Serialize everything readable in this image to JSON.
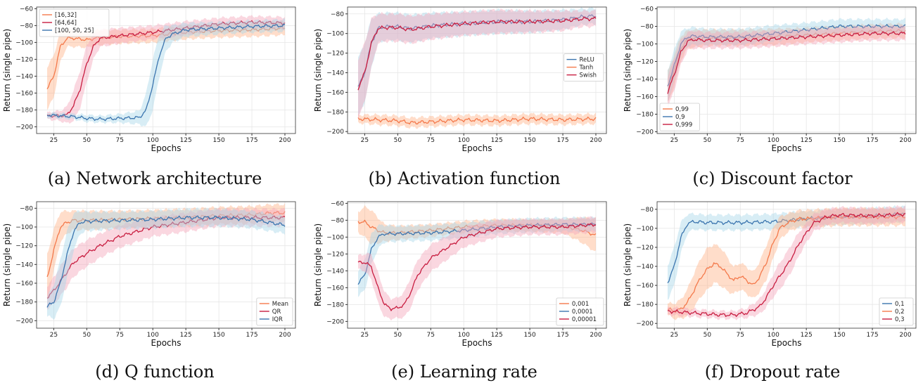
{
  "chart_data": [
    {
      "type": "line",
      "caption": "(a) Network architecture",
      "xlabel": "Epochs",
      "ylabel": "Return (single pipe)",
      "xlim": [
        12,
        208
      ],
      "ylim": [
        -208,
        -58
      ],
      "xticks": [
        25,
        50,
        75,
        100,
        125,
        150,
        175,
        200
      ],
      "yticks": [
        -200,
        -180,
        -160,
        -140,
        -120,
        -100,
        -80,
        -60
      ],
      "legend_position": "top-left",
      "grid": true,
      "series": [
        {
          "name": "[16,32]",
          "color": "#F4794B",
          "band_color": "#FFB48A",
          "x": [
            20,
            25,
            30,
            35,
            40,
            50,
            60,
            75,
            100,
            125,
            150,
            175,
            200
          ],
          "y": [
            -155,
            -140,
            -105,
            -95,
            -95,
            -97,
            -94,
            -93,
            -92,
            -88,
            -86,
            -85,
            -83
          ],
          "band": [
            25,
            25,
            18,
            10,
            10,
            9,
            9,
            8,
            8,
            8,
            8,
            8,
            8
          ]
        },
        {
          "name": "[64,64]",
          "color": "#C81D40",
          "band_color": "#F4A6BA",
          "x": [
            20,
            25,
            30,
            35,
            40,
            45,
            50,
            55,
            60,
            75,
            100,
            125,
            150,
            175,
            200
          ],
          "y": [
            -187,
            -187,
            -187,
            -186,
            -175,
            -155,
            -125,
            -105,
            -95,
            -92,
            -88,
            -83,
            -78,
            -76,
            -77
          ],
          "band": [
            4,
            5,
            6,
            10,
            18,
            22,
            22,
            15,
            10,
            9,
            8,
            8,
            7,
            7,
            7
          ]
        },
        {
          "name": "[100, 50, 25]",
          "color": "#3B75AF",
          "band_color": "#A9D8E8",
          "x": [
            20,
            30,
            40,
            50,
            60,
            75,
            90,
            95,
            100,
            105,
            110,
            115,
            125,
            150,
            175,
            200
          ],
          "y": [
            -186,
            -187,
            -188,
            -190,
            -191,
            -190,
            -189,
            -180,
            -150,
            -115,
            -95,
            -90,
            -85,
            -83,
            -81,
            -80
          ],
          "band": [
            3,
            3,
            3,
            4,
            4,
            5,
            8,
            20,
            30,
            25,
            15,
            10,
            8,
            7,
            7,
            7
          ]
        }
      ]
    },
    {
      "type": "line",
      "caption": "(b) Activation function",
      "xlabel": "Epochs",
      "ylabel": "Return (single pipe)",
      "xlim": [
        12,
        208
      ],
      "ylim": [
        -202,
        -73
      ],
      "xticks": [
        25,
        50,
        75,
        100,
        125,
        150,
        175,
        200
      ],
      "yticks": [
        -200,
        -180,
        -160,
        -140,
        -120,
        -100,
        -80
      ],
      "legend_position": "center-right",
      "grid": true,
      "series": [
        {
          "name": "ReLU",
          "color": "#3B75AF",
          "band_color": "#A9D8E8",
          "x": [
            20,
            25,
            30,
            35,
            40,
            50,
            60,
            75,
            100,
            125,
            150,
            175,
            190,
            200
          ],
          "y": [
            -155,
            -140,
            -110,
            -95,
            -93,
            -93,
            -95,
            -92,
            -90,
            -88,
            -88,
            -86,
            -83,
            -82
          ],
          "band": [
            30,
            30,
            25,
            15,
            14,
            14,
            14,
            13,
            12,
            12,
            11,
            10,
            8,
            8
          ]
        },
        {
          "name": "Tanh",
          "color": "#F4794B",
          "band_color": "#FFB48A",
          "x": [
            20,
            35,
            50,
            60,
            75,
            100,
            125,
            150,
            175,
            200
          ],
          "y": [
            -187,
            -188,
            -189,
            -191,
            -190,
            -188,
            -189,
            -187,
            -188,
            -187
          ],
          "band": [
            4,
            5,
            5,
            5,
            5,
            5,
            5,
            5,
            5,
            5
          ]
        },
        {
          "name": "Swish",
          "color": "#C81D40",
          "band_color": "#F4A6BA",
          "x": [
            20,
            25,
            30,
            35,
            40,
            50,
            60,
            75,
            100,
            125,
            150,
            175,
            190,
            200
          ],
          "y": [
            -156,
            -140,
            -110,
            -95,
            -94,
            -94,
            -96,
            -93,
            -90,
            -88,
            -88,
            -87,
            -85,
            -85
          ],
          "band": [
            30,
            30,
            25,
            15,
            14,
            14,
            14,
            13,
            12,
            12,
            11,
            10,
            8,
            8
          ]
        }
      ]
    },
    {
      "type": "line",
      "caption": "(c) Discount factor",
      "xlabel": "Epochs",
      "ylabel": "Return (single pipe)",
      "xlim": [
        12,
        208
      ],
      "ylim": [
        -202,
        -58
      ],
      "xticks": [
        25,
        50,
        75,
        100,
        125,
        150,
        175,
        200
      ],
      "yticks": [
        -200,
        -180,
        -160,
        -140,
        -120,
        -100,
        -80,
        -60
      ],
      "legend_position": "bottom-left",
      "grid": true,
      "series": [
        {
          "name": "0,99",
          "color": "#F4794B",
          "band_color": "#FFB48A",
          "x": [
            20,
            25,
            30,
            35,
            40,
            50,
            75,
            100,
            125,
            150,
            175,
            200
          ],
          "y": [
            -150,
            -130,
            -105,
            -95,
            -94,
            -93,
            -93,
            -92,
            -90,
            -88,
            -86,
            -85
          ],
          "band": [
            18,
            18,
            14,
            10,
            10,
            9,
            9,
            9,
            8,
            8,
            8,
            8
          ]
        },
        {
          "name": "0,9",
          "color": "#3B75AF",
          "band_color": "#A9D8E8",
          "x": [
            20,
            25,
            30,
            35,
            40,
            50,
            75,
            100,
            125,
            150,
            175,
            200
          ],
          "y": [
            -148,
            -125,
            -100,
            -92,
            -91,
            -92,
            -92,
            -88,
            -84,
            -80,
            -80,
            -80
          ],
          "band": [
            18,
            18,
            14,
            10,
            10,
            9,
            9,
            9,
            8,
            8,
            8,
            8
          ]
        },
        {
          "name": "0,999",
          "color": "#C81D40",
          "band_color": "#F4A6BA",
          "x": [
            20,
            25,
            30,
            35,
            40,
            50,
            75,
            100,
            125,
            150,
            175,
            200
          ],
          "y": [
            -155,
            -135,
            -110,
            -97,
            -95,
            -96,
            -96,
            -94,
            -92,
            -90,
            -88,
            -88
          ],
          "band": [
            18,
            18,
            14,
            10,
            10,
            9,
            9,
            9,
            8,
            8,
            8,
            8
          ]
        }
      ]
    },
    {
      "type": "line",
      "caption": "(d) Q function",
      "xlabel": "Epochs",
      "ylabel": "Return (single pipe)",
      "xlim": [
        12,
        208
      ],
      "ylim": [
        -208,
        -73
      ],
      "xticks": [
        25,
        50,
        75,
        100,
        125,
        150,
        175,
        200
      ],
      "yticks": [
        -200,
        -180,
        -160,
        -140,
        -120,
        -100,
        -80
      ],
      "legend_position": "bottom-right",
      "grid": true,
      "series": [
        {
          "name": "Mean",
          "color": "#F4794B",
          "band_color": "#FFB48A",
          "x": [
            20,
            25,
            30,
            35,
            40,
            50,
            75,
            100,
            125,
            150,
            175,
            190,
            200
          ],
          "y": [
            -155,
            -125,
            -100,
            -95,
            -93,
            -93,
            -92,
            -91,
            -90,
            -88,
            -87,
            -85,
            -85
          ],
          "band": [
            25,
            22,
            16,
            12,
            10,
            10,
            9,
            9,
            9,
            9,
            9,
            9,
            9
          ]
        },
        {
          "name": "QR",
          "color": "#C81D40",
          "band_color": "#F4A6BA",
          "x": [
            20,
            25,
            30,
            35,
            40,
            50,
            60,
            75,
            100,
            125,
            150,
            175,
            200
          ],
          "y": [
            -175,
            -168,
            -158,
            -148,
            -138,
            -128,
            -120,
            -110,
            -100,
            -95,
            -90,
            -90,
            -90
          ],
          "band": [
            12,
            14,
            16,
            16,
            15,
            14,
            13,
            12,
            10,
            10,
            9,
            9,
            9
          ]
        },
        {
          "name": "IQR",
          "color": "#3B75AF",
          "band_color": "#A9D8E8",
          "x": [
            20,
            25,
            30,
            35,
            40,
            45,
            50,
            75,
            100,
            125,
            150,
            175,
            200
          ],
          "y": [
            -185,
            -180,
            -160,
            -130,
            -105,
            -95,
            -94,
            -93,
            -92,
            -90,
            -90,
            -92,
            -98
          ],
          "band": [
            10,
            18,
            25,
            25,
            20,
            12,
            10,
            9,
            9,
            9,
            9,
            9,
            9
          ]
        }
      ]
    },
    {
      "type": "line",
      "caption": "(e) Learning rate",
      "xlabel": "Epochs",
      "ylabel": "Return (single pipe)",
      "xlim": [
        12,
        208
      ],
      "ylim": [
        -208,
        -58
      ],
      "xticks": [
        25,
        50,
        75,
        100,
        125,
        150,
        175,
        200
      ],
      "yticks": [
        -200,
        -180,
        -160,
        -140,
        -120,
        -100,
        -80,
        -60
      ],
      "legend_position": "bottom-right",
      "grid": true,
      "series": [
        {
          "name": "0,001",
          "color": "#F4794B",
          "band_color": "#FFB48A",
          "x": [
            20,
            25,
            30,
            35,
            40,
            50,
            75,
            100,
            125,
            150,
            175,
            190,
            200
          ],
          "y": [
            -82,
            -82,
            -88,
            -92,
            -95,
            -95,
            -92,
            -88,
            -86,
            -86,
            -87,
            -92,
            -98
          ],
          "band": [
            12,
            18,
            20,
            15,
            10,
            8,
            7,
            7,
            7,
            7,
            8,
            15,
            20
          ]
        },
        {
          "name": "0,0001",
          "color": "#3B75AF",
          "band_color": "#A9D8E8",
          "x": [
            20,
            25,
            30,
            35,
            40,
            50,
            75,
            100,
            125,
            150,
            175,
            200
          ],
          "y": [
            -155,
            -145,
            -115,
            -100,
            -96,
            -96,
            -95,
            -92,
            -88,
            -86,
            -85,
            -85
          ],
          "band": [
            15,
            18,
            18,
            14,
            10,
            9,
            9,
            9,
            8,
            8,
            8,
            8
          ]
        },
        {
          "name": "0,00001",
          "color": "#C81D40",
          "band_color": "#F4A6BA",
          "x": [
            20,
            25,
            30,
            35,
            40,
            45,
            50,
            55,
            60,
            65,
            75,
            100,
            125,
            150,
            175,
            200
          ],
          "y": [
            -130,
            -130,
            -135,
            -160,
            -180,
            -185,
            -184,
            -180,
            -165,
            -145,
            -125,
            -100,
            -90,
            -88,
            -88,
            -85
          ],
          "band": [
            8,
            10,
            15,
            18,
            15,
            12,
            12,
            15,
            18,
            18,
            16,
            12,
            10,
            9,
            9,
            9
          ]
        }
      ]
    },
    {
      "type": "line",
      "caption": "(f) Dropout rate",
      "xlabel": "Epochs",
      "ylabel": "Return (single pipe)",
      "xlim": [
        12,
        208
      ],
      "ylim": [
        -205,
        -72
      ],
      "xticks": [
        25,
        50,
        75,
        100,
        125,
        150,
        175,
        200
      ],
      "yticks": [
        -200,
        -180,
        -160,
        -140,
        -120,
        -100,
        -80
      ],
      "legend_position": "bottom-right",
      "grid": true,
      "series": [
        {
          "name": "0,1",
          "color": "#3B75AF",
          "band_color": "#A9D8E8",
          "x": [
            20,
            25,
            30,
            35,
            40,
            50,
            75,
            100,
            125,
            150,
            175,
            200
          ],
          "y": [
            -157,
            -140,
            -110,
            -95,
            -93,
            -94,
            -94,
            -93,
            -90,
            -88,
            -87,
            -85
          ],
          "band": [
            18,
            20,
            16,
            10,
            8,
            8,
            8,
            8,
            8,
            8,
            8,
            8
          ]
        },
        {
          "name": "0,2",
          "color": "#F4794B",
          "band_color": "#FFB48A",
          "x": [
            20,
            25,
            30,
            35,
            40,
            45,
            50,
            55,
            60,
            65,
            70,
            75,
            80,
            85,
            90,
            95,
            100,
            105,
            110,
            115,
            120,
            125,
            150,
            175,
            200
          ],
          "y": [
            -185,
            -187,
            -185,
            -178,
            -165,
            -152,
            -143,
            -137,
            -140,
            -148,
            -155,
            -150,
            -155,
            -160,
            -150,
            -135,
            -115,
            -100,
            -95,
            -92,
            -90,
            -90,
            -88,
            -88,
            -88
          ],
          "band": [
            6,
            8,
            10,
            14,
            18,
            20,
            22,
            20,
            20,
            18,
            14,
            14,
            14,
            14,
            16,
            18,
            16,
            12,
            10,
            9,
            9,
            9,
            9,
            9,
            9
          ]
        },
        {
          "name": "0,3",
          "color": "#C81D40",
          "band_color": "#F4A6BA",
          "x": [
            20,
            30,
            40,
            50,
            60,
            70,
            80,
            90,
            95,
            100,
            105,
            110,
            115,
            120,
            125,
            130,
            140,
            150,
            175,
            200
          ],
          "y": [
            -187,
            -188,
            -189,
            -190,
            -191,
            -191,
            -189,
            -182,
            -172,
            -160,
            -150,
            -140,
            -128,
            -115,
            -105,
            -95,
            -88,
            -86,
            -87,
            -85
          ],
          "band": [
            4,
            4,
            4,
            4,
            4,
            4,
            5,
            8,
            10,
            12,
            14,
            14,
            14,
            12,
            10,
            9,
            8,
            8,
            8,
            8
          ]
        }
      ]
    }
  ]
}
